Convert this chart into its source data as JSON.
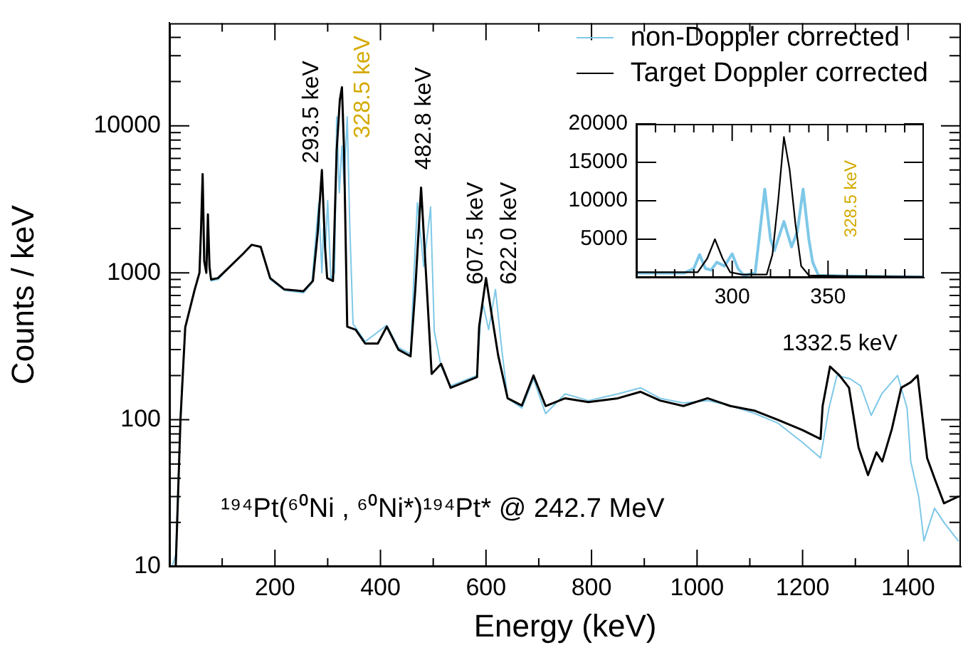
{
  "chart_data": [
    {
      "type": "line",
      "xlabel": "Energy (keV)",
      "ylabel": "Counts / keV",
      "log": "y",
      "grid": false,
      "legend": "top right",
      "xlim": [
        0,
        1500
      ],
      "ylim": [
        10,
        50000
      ],
      "xticks": [
        {
          "value": 100,
          "label": null
        },
        200,
        {
          "value": 300,
          "label": null
        },
        400,
        {
          "value": 500,
          "label": null
        },
        600,
        {
          "value": 700,
          "label": null
        },
        800,
        {
          "value": 900,
          "label": null
        },
        1000,
        {
          "value": 1100,
          "label": null
        },
        1200,
        {
          "value": 1300,
          "label": null
        },
        1400
      ],
      "yticks": [
        10,
        {
          "value": 20,
          "label": null
        },
        {
          "value": 30,
          "label": null
        },
        {
          "value": 40,
          "label": null
        },
        {
          "value": 50,
          "label": null
        },
        {
          "value": 60,
          "label": null
        },
        {
          "value": 70,
          "label": null
        },
        {
          "value": 80,
          "label": null
        },
        {
          "value": 90,
          "label": null
        },
        100,
        {
          "value": 200,
          "label": null
        },
        {
          "value": 300,
          "label": null
        },
        {
          "value": 400,
          "label": null
        },
        {
          "value": 500,
          "label": null
        },
        {
          "value": 600,
          "label": null
        },
        {
          "value": 700,
          "label": null
        },
        {
          "value": 800,
          "label": null
        },
        {
          "value": 900,
          "label": null
        },
        1000,
        {
          "value": 2000,
          "label": null
        },
        {
          "value": 3000,
          "label": null
        },
        {
          "value": 4000,
          "label": null
        },
        {
          "value": 5000,
          "label": null
        },
        {
          "value": 6000,
          "label": null
        },
        {
          "value": 7000,
          "label": null
        },
        {
          "value": 8000,
          "label": null
        },
        {
          "value": 9000,
          "label": null
        },
        10000,
        {
          "value": 20000,
          "label": null
        },
        {
          "value": 30000,
          "label": null
        },
        {
          "value": 40000,
          "label": null
        }
      ],
      "series": [
        {
          "name": "non-Doppler corrected",
          "color": "#7ec8e8",
          "x": [
            5,
            12,
            21,
            30,
            48,
            57,
            60,
            63,
            66,
            70,
            73,
            76,
            79,
            92,
            120,
            156,
            173,
            191,
            218,
            254,
            270,
            283,
            289,
            292,
            296,
            300,
            306,
            313,
            317,
            322,
            327,
            331,
            337,
            342,
            348,
            371,
            412,
            434,
            457,
            463,
            470,
            482,
            495,
            502,
            515,
            533,
            583,
            590,
            595,
            605,
            618,
            630,
            641,
            668,
            690,
            713,
            750,
            794,
            850,
            893,
            930,
            974,
            1020,
            1063,
            1110,
            1153,
            1200,
            1234,
            1250,
            1265,
            1290,
            1310,
            1330,
            1350,
            1380,
            1398,
            1405,
            1420,
            1430,
            1450,
            1468,
            1495
          ],
          "values": [
            10,
            12,
            110,
            430,
            780,
            1000,
            2000,
            4500,
            1200,
            1000,
            2300,
            1100,
            880,
            900,
            1150,
            1550,
            1500,
            900,
            760,
            730,
            850,
            3000,
            1000,
            2000,
            1500,
            3100,
            900,
            1000,
            11500,
            3500,
            7300,
            4000,
            11500,
            2000,
            450,
            340,
            440,
            310,
            280,
            900,
            3000,
            1100,
            2800,
            400,
            230,
            170,
            200,
            500,
            600,
            410,
            770,
            300,
            140,
            120,
            190,
            110,
            150,
            135,
            150,
            165,
            140,
            130,
            135,
            125,
            110,
            95,
            70,
            55,
            120,
            200,
            190,
            170,
            107,
            150,
            200,
            120,
            52,
            30,
            15,
            25,
            20,
            15
          ]
        },
        {
          "name": "Target Doppler corrected",
          "color": "#000000",
          "x": [
            5,
            12,
            21,
            30,
            48,
            57,
            60,
            63,
            66,
            70,
            73,
            76,
            79,
            92,
            120,
            140,
            156,
            173,
            191,
            218,
            254,
            272,
            281,
            289,
            295,
            299,
            310,
            317,
            323,
            327,
            331,
            337,
            353,
            371,
            395,
            412,
            434,
            457,
            466,
            477,
            488,
            497,
            515,
            533,
            583,
            587,
            600,
            609,
            623,
            641,
            668,
            690,
            713,
            750,
            794,
            850,
            893,
            930,
            974,
            1020,
            1063,
            1110,
            1153,
            1200,
            1234,
            1238,
            1252,
            1270,
            1288,
            1306,
            1324,
            1340,
            1351,
            1369,
            1387,
            1405,
            1418,
            1436,
            1450,
            1468,
            1495
          ],
          "values": [
            10,
            10,
            100,
            425,
            770,
            1000,
            2000,
            4700,
            1200,
            1000,
            2500,
            1100,
            900,
            920,
            1150,
            1350,
            1550,
            1500,
            920,
            770,
            750,
            880,
            1860,
            5000,
            1500,
            920,
            880,
            6800,
            15000,
            18300,
            6800,
            430,
            410,
            330,
            330,
            430,
            300,
            270,
            770,
            3800,
            770,
            205,
            240,
            165,
            195,
            430,
            920,
            570,
            275,
            140,
            125,
            200,
            124,
            140,
            132,
            140,
            155,
            135,
            124,
            140,
            124,
            115,
            100,
            85,
            74,
            124,
            230,
            200,
            165,
            65,
            42,
            60,
            52,
            86,
            165,
            180,
            200,
            55,
            40,
            27,
            30
          ]
        }
      ],
      "annotations": [
        "293.5 keV",
        "328.5 keV",
        "482.8 keV",
        "607.5 keV",
        "622.0 keV",
        "1332.5 keV",
        "¹⁹⁴Pt(⁶⁰Ni , ⁶⁰Ni*)¹⁹⁴Pt* @ 242.7 MeV"
      ]
    },
    {
      "type": "line",
      "grid": false,
      "xlim": [
        250,
        400
      ],
      "ylim": [
        0,
        20000
      ],
      "xticks": [
        {
          "value": 260,
          "label": null
        },
        {
          "value": 270,
          "label": null
        },
        {
          "value": 280,
          "label": null
        },
        {
          "value": 290,
          "label": null
        },
        300,
        {
          "value": 310,
          "label": null
        },
        {
          "value": 320,
          "label": null
        },
        {
          "value": 330,
          "label": null
        },
        {
          "value": 340,
          "label": null
        },
        350,
        {
          "value": 360,
          "label": null
        },
        {
          "value": 370,
          "label": null
        },
        {
          "value": 380,
          "label": null
        },
        {
          "value": 390,
          "label": null
        }
      ],
      "yticks": [
        5000,
        10000,
        15000,
        20000
      ],
      "series": [
        {
          "color": "#7ec8e8",
          "x": [
            250,
            275,
            280,
            283,
            286,
            289,
            292,
            296,
            300,
            303,
            306,
            312,
            317,
            320,
            322,
            327,
            331,
            334,
            337,
            340,
            342,
            345,
            360,
            400
          ],
          "values": [
            600,
            600,
            1200,
            3000,
            1200,
            1000,
            2000,
            1500,
            3100,
            1200,
            300,
            600,
            11500,
            5000,
            3500,
            7300,
            4000,
            6000,
            11500,
            5000,
            2000,
            300,
            200,
            100
          ]
        },
        {
          "color": "#000000",
          "x": [
            250,
            270,
            282,
            287,
            291,
            295,
            299,
            305,
            318,
            321,
            324,
            327,
            330,
            333,
            336,
            340,
            360,
            400
          ],
          "values": [
            700,
            700,
            700,
            2500,
            5000,
            2500,
            700,
            400,
            400,
            3000,
            10000,
            18300,
            14000,
            7000,
            1500,
            300,
            200,
            100
          ]
        }
      ],
      "annotations": [
        "328.5 keV"
      ]
    }
  ]
}
